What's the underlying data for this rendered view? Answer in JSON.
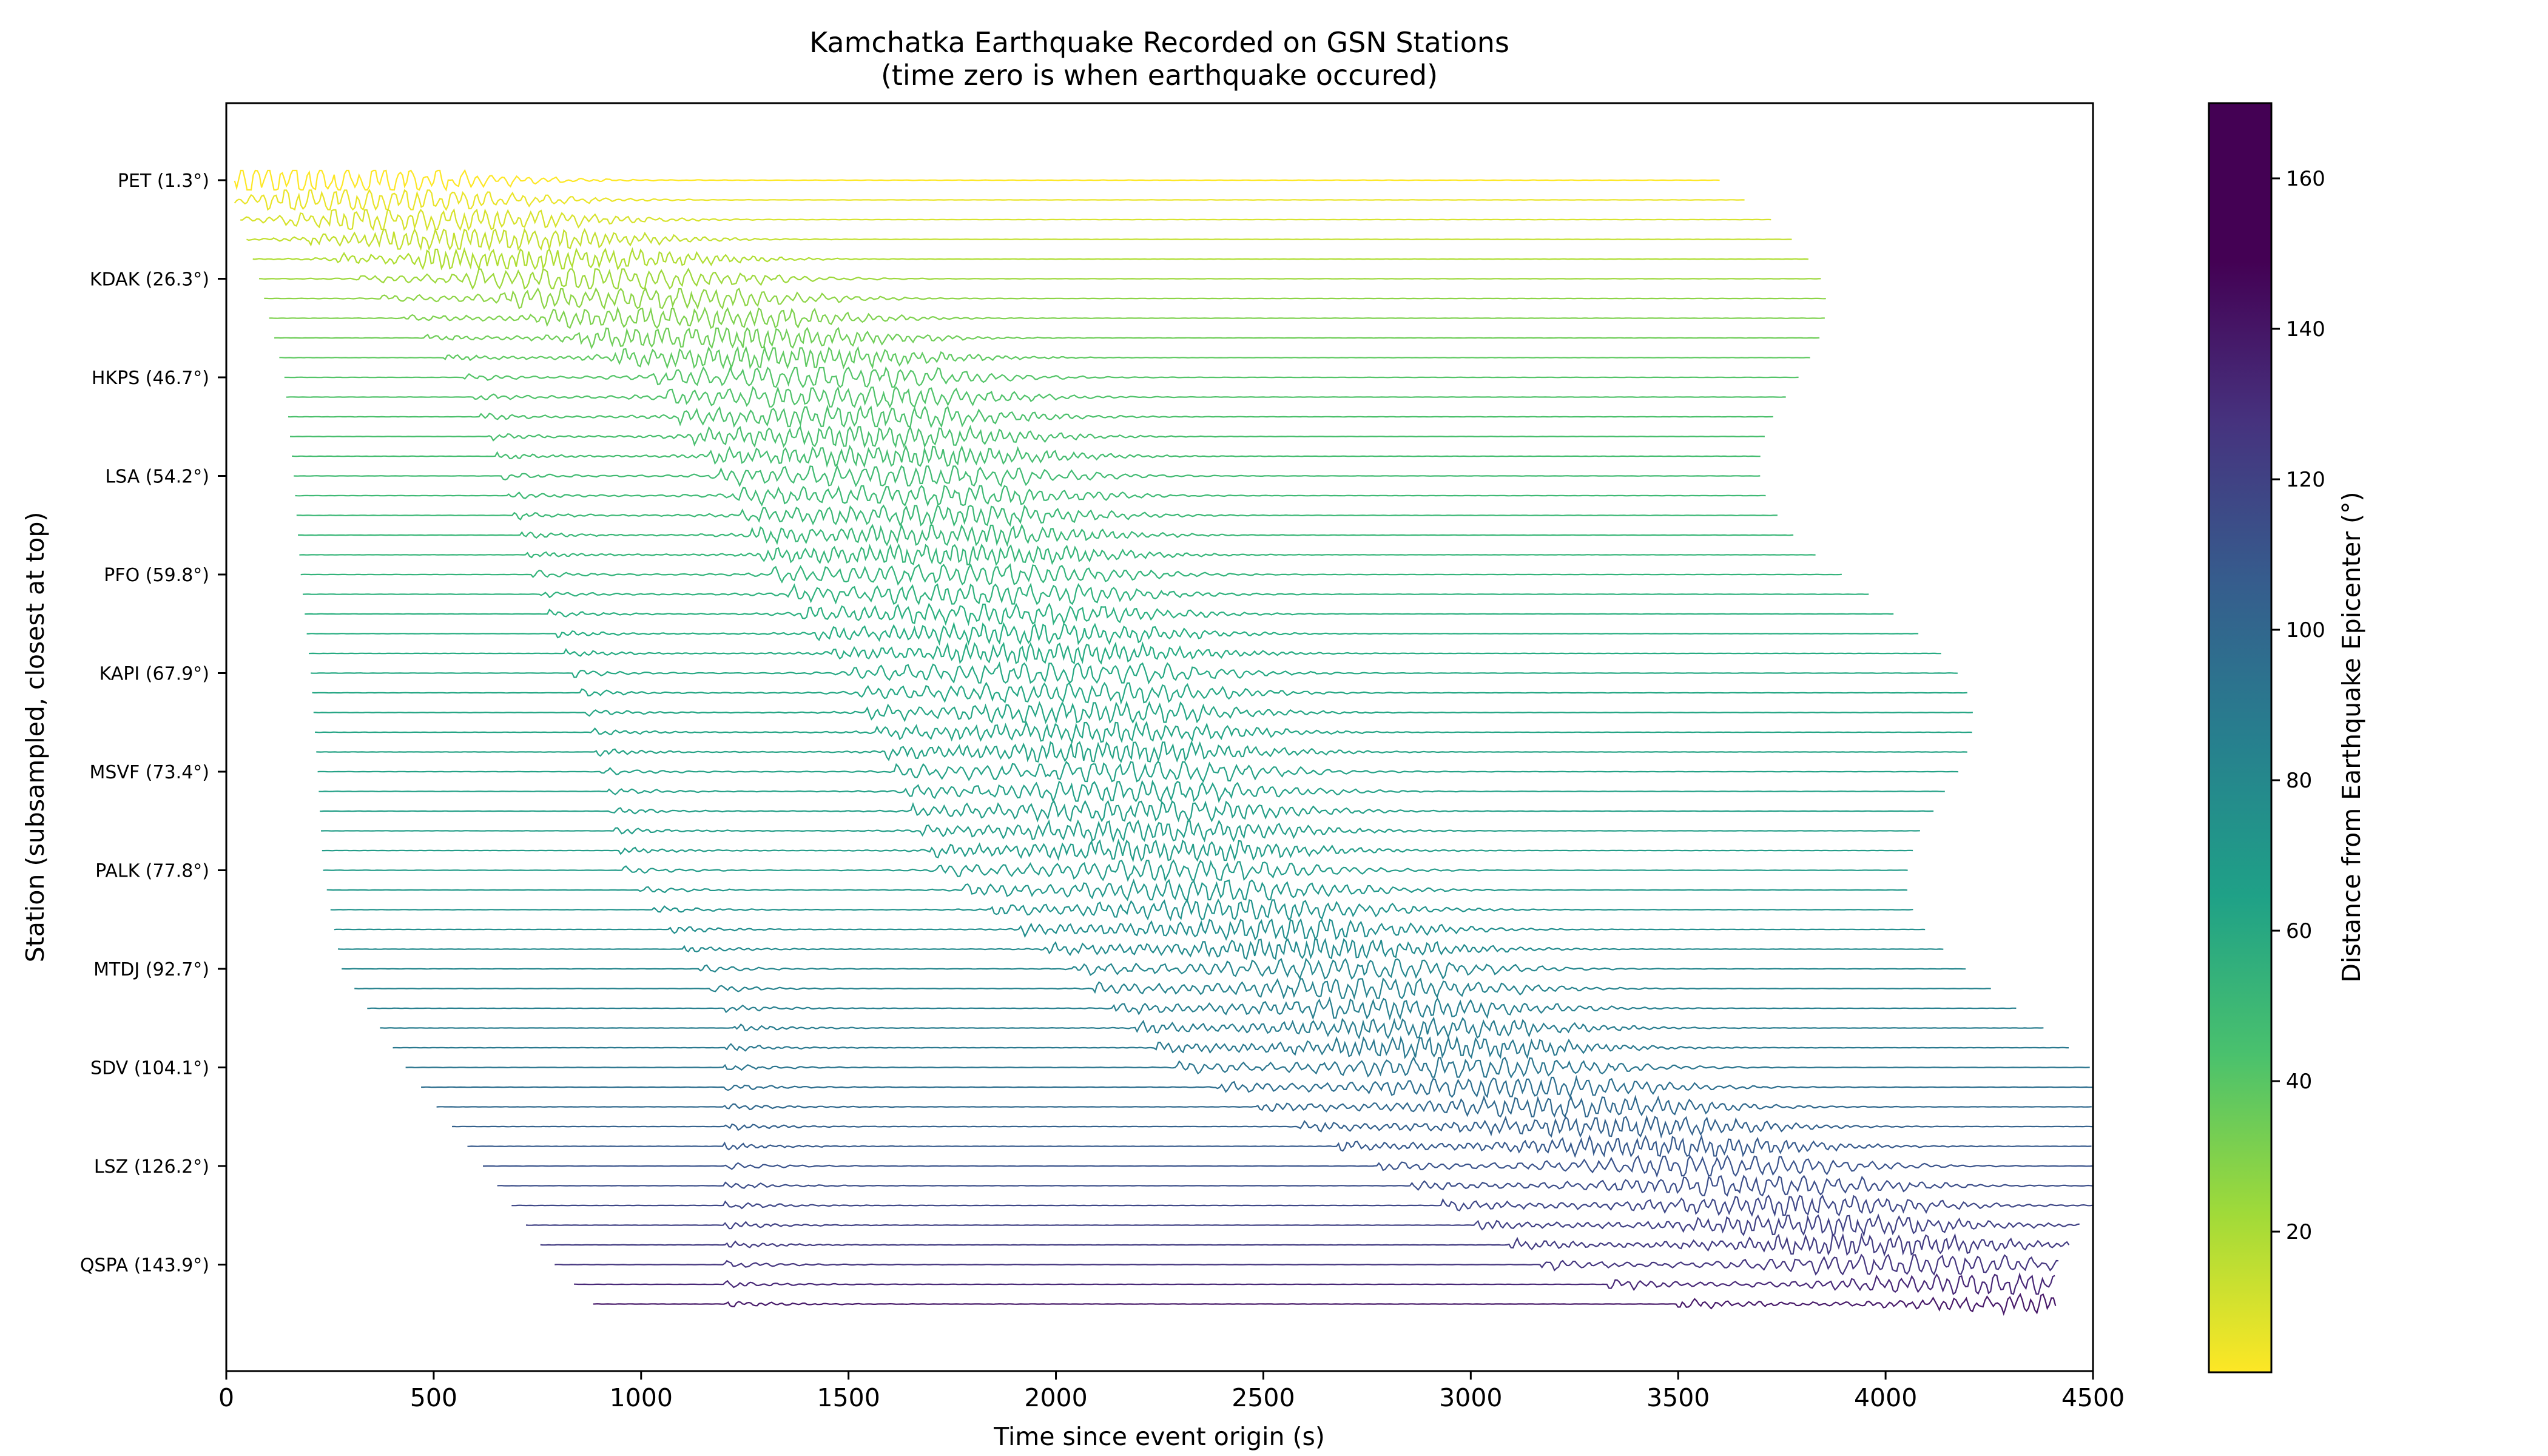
{
  "chart_data": {
    "type": "line",
    "title": "Kamchatka Earthquake Recorded on GSN Stations",
    "subtitle": "(time zero is when earthquake occured)",
    "xlabel": "Time since event origin (s)",
    "ylabel": "Station (subsampled, closest at top)",
    "xlim": [
      0,
      4500
    ],
    "xticks": [
      "0",
      "500",
      "1000",
      "1500",
      "2000",
      "2500",
      "3000",
      "3500",
      "4000",
      "4500"
    ],
    "grid": false,
    "trace_count": 58,
    "station_labels": [
      {
        "label": "PET (1.3°)",
        "trace_index": 0,
        "distance": 1.3
      },
      {
        "label": "KDAK (26.3°)",
        "trace_index": 5,
        "distance": 26.3
      },
      {
        "label": "HKPS (46.7°)",
        "trace_index": 10,
        "distance": 46.7
      },
      {
        "label": "LSA (54.2°)",
        "trace_index": 15,
        "distance": 54.2
      },
      {
        "label": "PFO (59.8°)",
        "trace_index": 20,
        "distance": 59.8
      },
      {
        "label": "KAPI (67.9°)",
        "trace_index": 25,
        "distance": 67.9
      },
      {
        "label": "MSVF (73.4°)",
        "trace_index": 30,
        "distance": 73.4
      },
      {
        "label": "PALK (77.8°)",
        "trace_index": 35,
        "distance": 77.8
      },
      {
        "label": "MTDJ (92.7°)",
        "trace_index": 40,
        "distance": 92.7
      },
      {
        "label": "SDV (104.1°)",
        "trace_index": 45,
        "distance": 104.1
      },
      {
        "label": "LSZ (126.2°)",
        "trace_index": 50,
        "distance": 126.2
      },
      {
        "label": "QSPA (143.9°)",
        "trace_index": 55,
        "distance": 143.9
      }
    ],
    "colorbar": {
      "label": "Distance from Earthquake Epicenter (°)",
      "colormap": "viridis (reversed: yellow = near, purple = far)",
      "range": [
        1.3,
        170
      ],
      "ticks": [
        "20",
        "40",
        "60",
        "80",
        "100",
        "120",
        "140",
        "160"
      ]
    }
  }
}
